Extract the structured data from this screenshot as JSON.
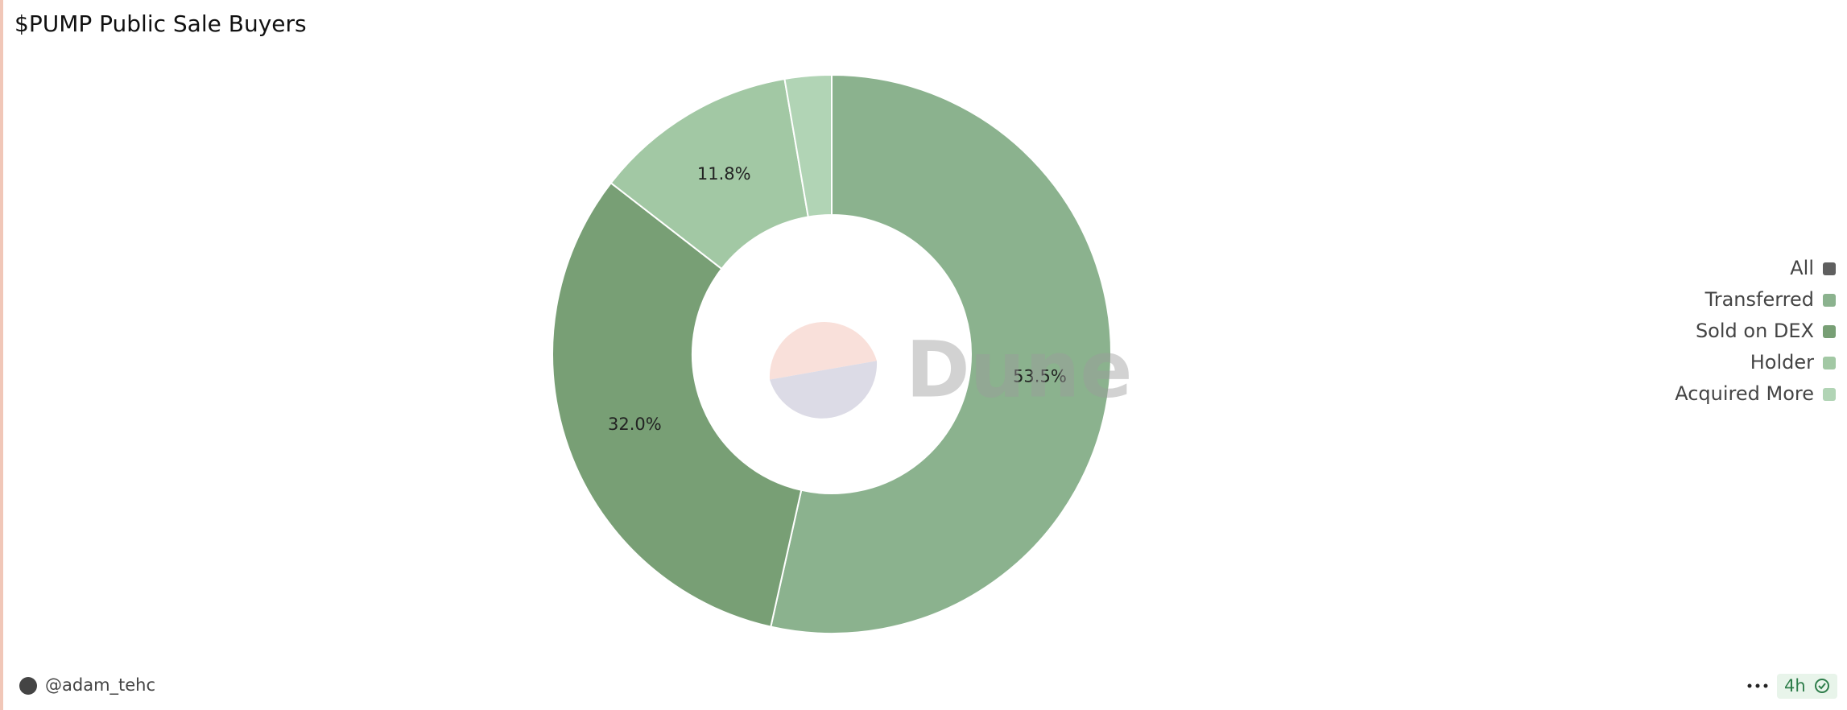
{
  "chart_data": {
    "type": "donut",
    "title": "$PUMP Public Sale Buyers",
    "categories": [
      "All",
      "Transferred",
      "Sold on DEX",
      "Holder",
      "Acquired More"
    ],
    "values": [
      null,
      53.5,
      32.0,
      11.8,
      2.7
    ],
    "value_labels": [
      null,
      "53.5%",
      "32.0%",
      "11.8%",
      null
    ],
    "colors": [
      "#5f5f5f",
      "#8bb28e",
      "#789f75",
      "#a2c8a4",
      "#b1d4b5"
    ],
    "legend": "right"
  },
  "watermark": "Dune",
  "footer": {
    "author": "@adam_tehc",
    "age": "4h"
  }
}
